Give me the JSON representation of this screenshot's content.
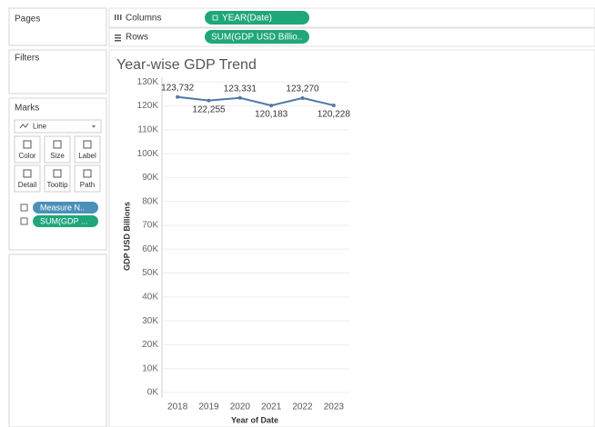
{
  "panels": {
    "pages": "Pages",
    "filters": "Filters",
    "marks": "Marks"
  },
  "marks_card": {
    "mark_type": "Line",
    "buttons": [
      "Color",
      "Size",
      "Label",
      "Detail",
      "Tooltip",
      "Path"
    ],
    "pills": [
      "Measure N..",
      "SUM(GDP ..."
    ]
  },
  "shelves": {
    "columns": {
      "label": "Columns",
      "pill": "YEAR(Date)"
    },
    "rows": {
      "label": "Rows",
      "pill": "SUM(GDP USD Billio.."
    }
  },
  "chart_data": {
    "type": "line",
    "title": "Year-wise GDP Trend",
    "x_label": "Year of Date",
    "y_label": "GDP USD Billions",
    "categories": [
      "2018",
      "2019",
      "2020",
      "2021",
      "2022",
      "2023"
    ],
    "series": [
      {
        "name": "GDP USD Billions",
        "color": "#4e79a7",
        "values": [
          123732,
          122255,
          123331,
          120183,
          123270,
          120228
        ],
        "value_labels": [
          "123,732",
          "122,255",
          "123,331",
          "120,183",
          "123,270",
          "120,228"
        ]
      }
    ],
    "ylim": [
      0,
      132000
    ],
    "yticks": [
      {
        "value": 0,
        "label": "0K"
      },
      {
        "value": 10000,
        "label": "10K"
      },
      {
        "value": 20000,
        "label": "20K"
      },
      {
        "value": 30000,
        "label": "30K"
      },
      {
        "value": 40000,
        "label": "40K"
      },
      {
        "value": 50000,
        "label": "50K"
      },
      {
        "value": 60000,
        "label": "60K"
      },
      {
        "value": 70000,
        "label": "70K"
      },
      {
        "value": 80000,
        "label": "80K"
      },
      {
        "value": 90000,
        "label": "90K"
      },
      {
        "value": 100000,
        "label": "100K"
      },
      {
        "value": 110000,
        "label": "110K"
      },
      {
        "value": 120000,
        "label": "120K"
      },
      {
        "value": 130000,
        "label": "130K"
      }
    ],
    "grid": true
  }
}
